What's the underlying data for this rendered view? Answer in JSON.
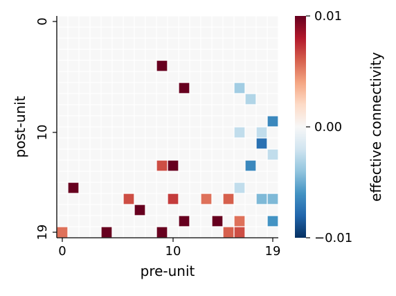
{
  "chart_data": {
    "type": "heatmap",
    "title": "",
    "xlabel": "pre-unit",
    "ylabel": "post-unit",
    "n_rows": 20,
    "n_cols": 20,
    "x_ticks": [
      0,
      10,
      19
    ],
    "y_ticks": [
      0,
      10,
      19
    ],
    "colorbar": {
      "label": "effective connectivity",
      "ticks": [
        "0.01",
        "0.00",
        "−0.01"
      ],
      "tick_values": [
        0.01,
        0.0,
        -0.01
      ],
      "vmin": -0.01,
      "vmax": 0.01,
      "colormap": "RdBu_r"
    },
    "background_value": 0.0,
    "grid": true,
    "cells": [
      {
        "row": 4,
        "col": 9,
        "value": 0.01
      },
      {
        "row": 6,
        "col": 11,
        "value": 0.01
      },
      {
        "row": 6,
        "col": 16,
        "value": -0.0035
      },
      {
        "row": 7,
        "col": 17,
        "value": -0.003
      },
      {
        "row": 9,
        "col": 19,
        "value": -0.0065
      },
      {
        "row": 10,
        "col": 16,
        "value": -0.0025
      },
      {
        "row": 10,
        "col": 18,
        "value": -0.0025
      },
      {
        "row": 11,
        "col": 18,
        "value": -0.0075
      },
      {
        "row": 12,
        "col": 19,
        "value": -0.0025
      },
      {
        "row": 13,
        "col": 9,
        "value": 0.0065
      },
      {
        "row": 13,
        "col": 10,
        "value": 0.01
      },
      {
        "row": 13,
        "col": 17,
        "value": -0.0065
      },
      {
        "row": 15,
        "col": 1,
        "value": 0.01
      },
      {
        "row": 15,
        "col": 16,
        "value": -0.0025
      },
      {
        "row": 16,
        "col": 6,
        "value": 0.0065
      },
      {
        "row": 16,
        "col": 10,
        "value": 0.007
      },
      {
        "row": 16,
        "col": 13,
        "value": 0.0055
      },
      {
        "row": 16,
        "col": 15,
        "value": 0.006
      },
      {
        "row": 16,
        "col": 18,
        "value": -0.0045
      },
      {
        "row": 16,
        "col": 19,
        "value": -0.0045
      },
      {
        "row": 17,
        "col": 7,
        "value": 0.01
      },
      {
        "row": 18,
        "col": 11,
        "value": 0.01
      },
      {
        "row": 18,
        "col": 14,
        "value": 0.01
      },
      {
        "row": 18,
        "col": 16,
        "value": 0.0055
      },
      {
        "row": 18,
        "col": 19,
        "value": -0.006
      },
      {
        "row": 19,
        "col": 0,
        "value": 0.0055
      },
      {
        "row": 19,
        "col": 4,
        "value": 0.01
      },
      {
        "row": 19,
        "col": 9,
        "value": 0.01
      },
      {
        "row": 19,
        "col": 15,
        "value": 0.006
      },
      {
        "row": 19,
        "col": 16,
        "value": 0.0065
      }
    ]
  }
}
